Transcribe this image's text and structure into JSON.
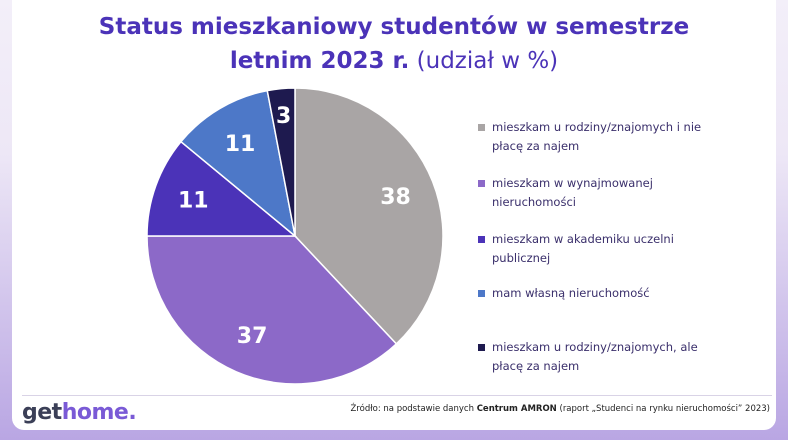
{
  "header": {
    "title_line1": "Status mieszkaniowy studentów w semestrze",
    "title_line2_bold": "letnim 2023 r.",
    "title_line2_normal": " (udział w %)"
  },
  "chart_data": {
    "type": "pie",
    "start_angle_deg": 0,
    "direction": "clockwise",
    "slices": [
      {
        "label": "mieszkam u rodziny/znajomych i nie płacę za najem",
        "value": 38,
        "color": "#a9a5a5"
      },
      {
        "label": "mieszkam w wynajmowanej nieruchomości",
        "value": 37,
        "color": "#8c69c8"
      },
      {
        "label": "mieszkam w akademiku uczelni publicznej",
        "value": 11,
        "color": "#4b33b8"
      },
      {
        "label": "mam własną nieruchomość",
        "value": 11,
        "color": "#4d78c8"
      },
      {
        "label": "mieszkam u rodziny/znajomych, ale płacę za najem",
        "value": 3,
        "color": "#1e1a4f"
      }
    ],
    "legend_placement": "right"
  },
  "legend": {
    "items": [
      {
        "line1": "mieszkam u rodziny/znajomych i nie",
        "line2": "płacę za najem",
        "color": "#a9a5a5"
      },
      {
        "line1": "mieszkam w wynajmowanej",
        "line2": "nieruchomości",
        "color": "#8c69c8"
      },
      {
        "line1": "mieszkam w akademiku uczelni",
        "line2": "publicznej",
        "color": "#4b33b8"
      },
      {
        "line1": "mam własną nieruchomość",
        "line2": "",
        "color": "#4d78c8"
      },
      {
        "line1": "mieszkam u rodziny/znajomych, ale",
        "line2": "płacę za najem",
        "color": "#1e1a4f"
      }
    ]
  },
  "footer": {
    "logo_main": "get",
    "logo_accent": "home",
    "logo_dot": ".",
    "source_prefix": "Źródło: na podstawie danych ",
    "source_bold": "Centrum AMRON",
    "source_suffix": " (raport „Studenci na rynku nieruchomości” 2023)"
  }
}
